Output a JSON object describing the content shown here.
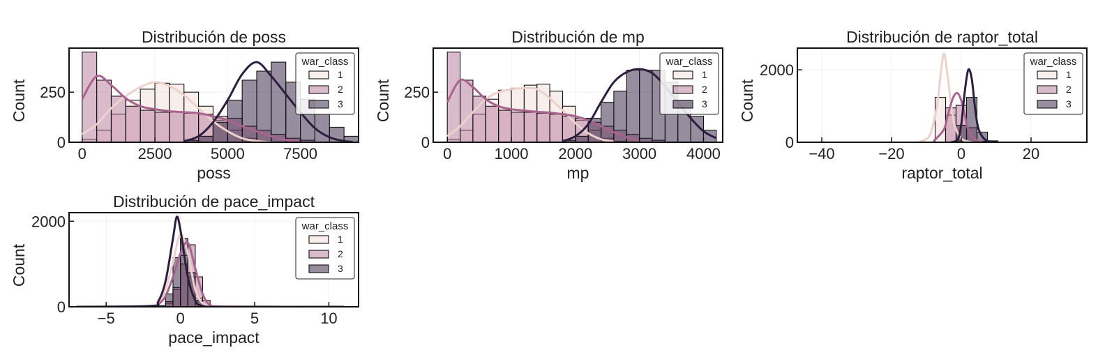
{
  "palette": {
    "1": "#f1dfdc",
    "2": "#b5779a",
    "3": "#2d1e3e"
  },
  "line_colors": {
    "1": "#ecd1cc",
    "2": "#a9648d",
    "3": "#2d1e3e"
  },
  "legend": {
    "title": "war_class",
    "labels": [
      "1",
      "2",
      "3"
    ]
  },
  "chart_data": [
    {
      "type": "histogram",
      "title": "Distribución de poss",
      "xlabel": "poss",
      "ylabel": "Count",
      "xlim": [
        -450,
        9500
      ],
      "ylim": [
        0,
        470
      ],
      "xticks": [
        0,
        2500,
        5000,
        7500
      ],
      "xtick_labels": [
        "0",
        "2500",
        "5000",
        "7500"
      ],
      "yticks": [
        0,
        250
      ],
      "ytick_labels": [
        "0",
        "250"
      ],
      "bin_start": 0,
      "bin_width": 500,
      "legend_position": "top-right",
      "series": [
        {
          "name": "1",
          "counts": [
            15,
            60,
            140,
            210,
            265,
            295,
            290,
            250,
            180,
            110,
            60,
            20,
            5,
            0,
            0,
            0,
            0,
            0,
            0
          ]
        },
        {
          "name": "2",
          "counts": [
            450,
            310,
            230,
            180,
            160,
            150,
            150,
            145,
            140,
            130,
            120,
            80,
            60,
            40,
            20,
            10,
            0,
            0,
            0
          ]
        },
        {
          "name": "3",
          "counts": [
            0,
            0,
            0,
            0,
            0,
            0,
            0,
            10,
            30,
            100,
            210,
            310,
            355,
            400,
            300,
            215,
            140,
            75,
            30
          ]
        }
      ],
      "kde": [
        {
          "name": "1",
          "x": [
            0,
            500,
            1000,
            1500,
            2000,
            2500,
            3000,
            3500,
            4000,
            4500,
            5000,
            5500,
            6000,
            6500
          ],
          "y": [
            40,
            90,
            170,
            230,
            275,
            300,
            280,
            235,
            170,
            105,
            55,
            20,
            6,
            0
          ]
        },
        {
          "name": "2",
          "x": [
            0,
            500,
            1000,
            1500,
            2000,
            2500,
            3000,
            3500,
            4000,
            4500,
            5000,
            5500,
            6000,
            6500,
            7000,
            7500
          ],
          "y": [
            215,
            330,
            285,
            220,
            180,
            165,
            155,
            150,
            145,
            130,
            110,
            80,
            55,
            30,
            12,
            3
          ]
        },
        {
          "name": "3",
          "x": [
            3500,
            4000,
            4500,
            5000,
            5500,
            6000,
            6500,
            7000,
            7500,
            8000,
            8500,
            9000,
            9300
          ],
          "y": [
            5,
            30,
            100,
            210,
            340,
            400,
            330,
            240,
            150,
            70,
            25,
            6,
            2
          ]
        }
      ]
    },
    {
      "type": "histogram",
      "title": "Distribución de mp",
      "xlabel": "mp",
      "ylabel": "Count",
      "xlim": [
        -220,
        4300
      ],
      "ylim": [
        0,
        470
      ],
      "xticks": [
        0,
        1000,
        2000,
        3000,
        4000
      ],
      "xtick_labels": [
        "0",
        "1000",
        "2000",
        "3000",
        "4000"
      ],
      "yticks": [
        0,
        250
      ],
      "ytick_labels": [
        "0",
        "250"
      ],
      "bin_start": 0,
      "bin_width": 200,
      "legend_position": "top-right",
      "series": [
        {
          "name": "1",
          "counts": [
            15,
            60,
            140,
            215,
            260,
            270,
            285,
            290,
            255,
            180,
            110,
            60,
            20,
            5,
            0,
            0,
            0,
            0,
            0,
            0,
            0
          ]
        },
        {
          "name": "2",
          "counts": [
            450,
            310,
            230,
            180,
            160,
            150,
            150,
            145,
            140,
            130,
            120,
            100,
            80,
            60,
            40,
            20,
            10,
            0,
            0,
            0,
            0
          ]
        },
        {
          "name": "3",
          "counts": [
            0,
            0,
            0,
            0,
            0,
            0,
            0,
            0,
            0,
            10,
            30,
            120,
            200,
            255,
            360,
            360,
            360,
            300,
            210,
            130,
            60
          ]
        }
      ],
      "kde": [
        {
          "name": "1",
          "x": [
            0,
            200,
            400,
            600,
            800,
            1000,
            1200,
            1400,
            1600,
            1800,
            2000,
            2200,
            2400,
            2600
          ],
          "y": [
            30,
            80,
            150,
            215,
            250,
            265,
            270,
            265,
            220,
            160,
            95,
            45,
            15,
            3
          ]
        },
        {
          "name": "2",
          "x": [
            0,
            200,
            400,
            600,
            800,
            1000,
            1200,
            1400,
            1600,
            1800,
            2000,
            2200,
            2400,
            2600,
            2800,
            3000
          ],
          "y": [
            200,
            310,
            275,
            215,
            180,
            165,
            158,
            152,
            148,
            140,
            130,
            110,
            80,
            50,
            25,
            8
          ]
        },
        {
          "name": "3",
          "x": [
            1800,
            2000,
            2200,
            2400,
            2600,
            2800,
            3000,
            3200,
            3400,
            3600,
            3800,
            4000,
            4200
          ],
          "y": [
            5,
            30,
            90,
            200,
            300,
            350,
            365,
            345,
            280,
            200,
            120,
            55,
            20
          ]
        }
      ]
    },
    {
      "type": "histogram",
      "title": "Distribución de raptor_total",
      "xlabel": "raptor_total",
      "ylabel": "Count",
      "xlim": [
        -47,
        36
      ],
      "ylim": [
        0,
        2600
      ],
      "xticks": [
        -40,
        -20,
        0,
        20
      ],
      "xtick_labels": [
        "−40",
        "−20",
        "0",
        "20"
      ],
      "yticks": [
        0,
        2000
      ],
      "ytick_labels": [
        "0",
        "2000"
      ],
      "bin_start": -7.5,
      "bin_width": 3,
      "legend_position": "top-right",
      "series": [
        {
          "name": "1",
          "counts": [
            1240,
            750,
            40,
            0,
            0,
            0
          ]
        },
        {
          "name": "2",
          "counts": [
            0,
            950,
            1020,
            400,
            30,
            0
          ]
        },
        {
          "name": "3",
          "counts": [
            0,
            0,
            470,
            1240,
            280,
            40
          ]
        }
      ],
      "kde": [
        {
          "name": "1",
          "x": [
            -12,
            -9,
            -7,
            -6,
            -5,
            -4,
            -3,
            -2,
            0,
            3
          ],
          "y": [
            10,
            200,
            1000,
            1800,
            2450,
            1900,
            1100,
            500,
            100,
            0
          ]
        },
        {
          "name": "2",
          "x": [
            -8,
            -5,
            -4,
            -3,
            -2,
            -1,
            0,
            1,
            2,
            4,
            6
          ],
          "y": [
            20,
            350,
            700,
            1050,
            1300,
            1350,
            1150,
            750,
            350,
            80,
            5
          ]
        },
        {
          "name": "3",
          "x": [
            -3,
            -1,
            0,
            1,
            2,
            3,
            4,
            5,
            7,
            10
          ],
          "y": [
            0,
            80,
            500,
            1400,
            2000,
            1750,
            900,
            350,
            60,
            0
          ]
        }
      ]
    },
    {
      "type": "histogram",
      "title": "Distribución de pace_impact",
      "xlabel": "pace_impact",
      "ylabel": "Count",
      "xlim": [
        -7.5,
        12
      ],
      "ylim": [
        0,
        2200
      ],
      "xticks": [
        -5,
        0,
        5,
        10
      ],
      "xtick_labels": [
        "−5",
        "0",
        "5",
        "10"
      ],
      "yticks": [
        0,
        2000
      ],
      "ytick_labels": [
        "0",
        "2000"
      ],
      "bin_start": -1.5,
      "bin_width": 0.5,
      "legend_position": "top-right",
      "series": [
        {
          "name": "1",
          "counts": [
            0,
            80,
            400,
            1200,
            700,
            200,
            40,
            0
          ]
        },
        {
          "name": "2",
          "counts": [
            0,
            120,
            450,
            1000,
            1450,
            700,
            150,
            20
          ]
        },
        {
          "name": "3",
          "counts": [
            30,
            300,
            1150,
            1600,
            800,
            150,
            30,
            0
          ]
        }
      ],
      "kde": [
        {
          "name": "1",
          "x": [
            -7,
            -2,
            -1.5,
            -1,
            -0.5,
            0,
            0.5,
            1,
            1.5,
            2,
            3,
            11
          ],
          "y": [
            0,
            10,
            80,
            400,
            1050,
            1700,
            1250,
            400,
            80,
            10,
            0,
            0
          ]
        },
        {
          "name": "2",
          "x": [
            -7,
            -2,
            -1.5,
            -1,
            -0.5,
            0,
            0.5,
            1,
            1.5,
            2,
            3,
            11
          ],
          "y": [
            0,
            10,
            60,
            250,
            700,
            1250,
            1500,
            900,
            300,
            50,
            5,
            0
          ]
        },
        {
          "name": "3",
          "x": [
            -7,
            -2,
            -1.5,
            -1,
            -0.5,
            -0.25,
            0,
            0.5,
            1,
            1.5,
            3,
            11
          ],
          "y": [
            0,
            20,
            120,
            600,
            1600,
            2100,
            1800,
            700,
            150,
            20,
            0,
            0
          ]
        }
      ]
    }
  ]
}
